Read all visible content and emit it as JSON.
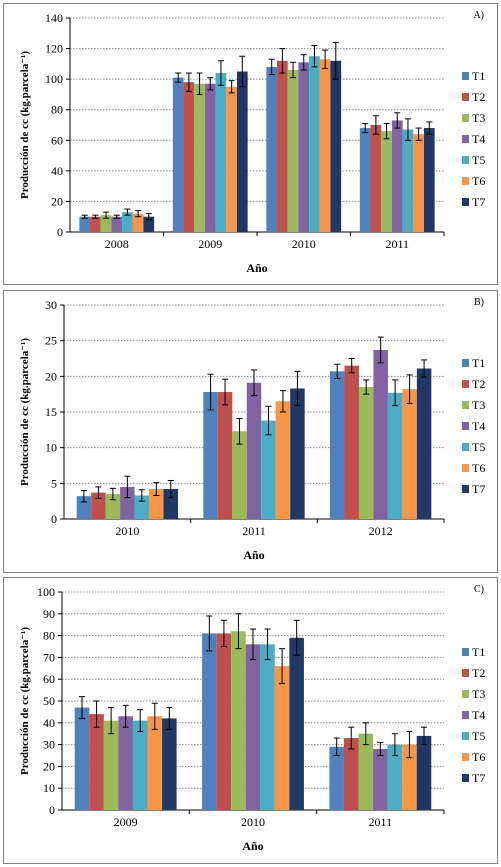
{
  "colors": {
    "T1": "#4f81bd",
    "T2": "#c0504d",
    "T3": "#9bbb59",
    "T4": "#8064a2",
    "T5": "#4bacc6",
    "T6": "#f79646",
    "T7": "#1f3864"
  },
  "chart_data": [
    {
      "type": "bar",
      "panel_label": "A)",
      "ylabel": "Producción de cc (kg.parcela⁻¹)",
      "xlabel": "Año",
      "ylim": [
        0,
        140
      ],
      "yticks": [
        0,
        20,
        40,
        60,
        80,
        100,
        120,
        140
      ],
      "grid": true,
      "legend_position": "right",
      "categories": [
        "2008",
        "2009",
        "2010",
        "2011"
      ],
      "series": [
        {
          "name": "T1",
          "values": [
            10,
            101,
            108,
            68
          ],
          "errors": [
            1,
            3,
            5,
            3
          ]
        },
        {
          "name": "T2",
          "values": [
            10,
            98,
            112,
            70
          ],
          "errors": [
            1,
            6,
            8,
            6
          ]
        },
        {
          "name": "T3",
          "values": [
            11,
            97,
            106,
            66
          ],
          "errors": [
            2,
            7,
            5,
            5
          ]
        },
        {
          "name": "T4",
          "values": [
            10,
            97,
            111,
            73
          ],
          "errors": [
            1,
            4,
            5,
            5
          ]
        },
        {
          "name": "T5",
          "values": [
            13,
            104,
            115,
            67
          ],
          "errors": [
            2,
            8,
            7,
            7
          ]
        },
        {
          "name": "T6",
          "values": [
            12,
            95,
            113,
            64
          ],
          "errors": [
            2,
            4,
            6,
            4
          ]
        },
        {
          "name": "T7",
          "values": [
            10,
            105,
            112,
            68
          ],
          "errors": [
            2,
            10,
            12,
            4
          ]
        }
      ]
    },
    {
      "type": "bar",
      "panel_label": "B)",
      "ylabel": "Producción de cc (kg.parcela⁻¹)",
      "xlabel": "Año",
      "ylim": [
        0,
        30
      ],
      "yticks": [
        0,
        5,
        10,
        15,
        20,
        25,
        30
      ],
      "grid": true,
      "legend_position": "right",
      "categories": [
        "2010",
        "2011",
        "2012"
      ],
      "series": [
        {
          "name": "T1",
          "values": [
            3.2,
            17.8,
            20.7
          ],
          "errors": [
            0.8,
            2.5,
            1.0
          ]
        },
        {
          "name": "T2",
          "values": [
            3.7,
            17.8,
            21.5
          ],
          "errors": [
            0.8,
            1.8,
            1.0
          ]
        },
        {
          "name": "T3",
          "values": [
            3.5,
            12.3,
            18.5
          ],
          "errors": [
            0.8,
            1.8,
            1.0
          ]
        },
        {
          "name": "T4",
          "values": [
            4.5,
            19.1,
            23.7
          ],
          "errors": [
            1.5,
            1.8,
            1.8
          ]
        },
        {
          "name": "T5",
          "values": [
            3.3,
            13.8,
            17.7
          ],
          "errors": [
            0.8,
            2.0,
            1.8
          ]
        },
        {
          "name": "T6",
          "values": [
            4.2,
            16.5,
            18.2
          ],
          "errors": [
            0.9,
            1.5,
            2.0
          ]
        },
        {
          "name": "T7",
          "values": [
            4.2,
            18.3,
            21.1
          ],
          "errors": [
            1.2,
            2.4,
            1.2
          ]
        }
      ]
    },
    {
      "type": "bar",
      "panel_label": "C)",
      "ylabel": "Producción de cc (kg.parcela⁻¹)",
      "xlabel": "Año",
      "ylim": [
        0,
        100
      ],
      "yticks": [
        0,
        10,
        20,
        30,
        40,
        50,
        60,
        70,
        80,
        90,
        100
      ],
      "grid": true,
      "legend_position": "right",
      "categories": [
        "2009",
        "2010",
        "2011"
      ],
      "series": [
        {
          "name": "T1",
          "values": [
            47,
            81,
            29
          ],
          "errors": [
            5,
            8,
            4
          ]
        },
        {
          "name": "T2",
          "values": [
            44,
            81,
            33
          ],
          "errors": [
            6,
            6,
            5
          ]
        },
        {
          "name": "T3",
          "values": [
            41,
            82,
            35
          ],
          "errors": [
            6,
            8,
            5
          ]
        },
        {
          "name": "T4",
          "values": [
            43,
            76,
            28
          ],
          "errors": [
            5,
            7,
            3
          ]
        },
        {
          "name": "T5",
          "values": [
            41,
            76,
            30
          ],
          "errors": [
            5,
            7,
            5
          ]
        },
        {
          "name": "T6",
          "values": [
            43,
            66,
            30
          ],
          "errors": [
            6,
            8,
            6
          ]
        },
        {
          "name": "T7",
          "values": [
            42,
            79,
            34
          ],
          "errors": [
            5,
            8,
            4
          ]
        }
      ]
    }
  ]
}
